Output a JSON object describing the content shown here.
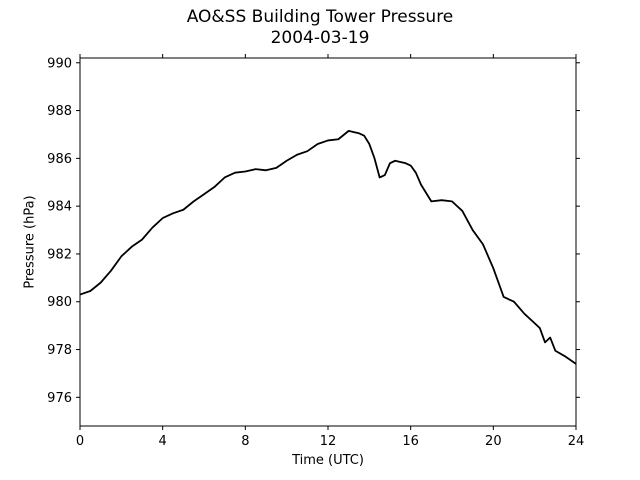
{
  "chart_data": {
    "type": "line",
    "title": "AO&SS Building Tower Pressure",
    "subtitle": "2004-03-19",
    "xlabel": "Time (UTC)",
    "ylabel": "Pressure (hPa)",
    "xlim": [
      0,
      24
    ],
    "ylim": [
      974.8,
      990.2
    ],
    "xticks": [
      0,
      4,
      8,
      12,
      16,
      20,
      24
    ],
    "yticks": [
      976,
      978,
      980,
      982,
      984,
      986,
      988,
      990
    ],
    "grid": false,
    "series": [
      {
        "color": "#000000",
        "x": [
          0,
          0.5,
          1.0,
          1.5,
          2.0,
          2.5,
          3.0,
          3.5,
          4.0,
          4.5,
          5.0,
          5.5,
          6.0,
          6.5,
          7.0,
          7.5,
          8.0,
          8.5,
          9.0,
          9.5,
          10.0,
          10.5,
          11.0,
          11.5,
          12.0,
          12.5,
          13.0,
          13.25,
          13.5,
          13.75,
          14.0,
          14.25,
          14.5,
          14.75,
          15.0,
          15.25,
          15.5,
          15.75,
          16.0,
          16.25,
          16.5,
          17.0,
          17.5,
          18.0,
          18.5,
          19.0,
          19.5,
          20.0,
          20.5,
          21.0,
          21.5,
          22.0,
          22.25,
          22.5,
          22.75,
          23.0,
          23.5,
          24.0
        ],
        "y": [
          980.3,
          980.45,
          980.8,
          981.3,
          981.9,
          982.3,
          982.6,
          983.1,
          983.5,
          983.7,
          983.85,
          984.2,
          984.5,
          984.8,
          985.2,
          985.4,
          985.45,
          985.55,
          985.5,
          985.6,
          985.9,
          986.15,
          986.3,
          986.6,
          986.75,
          986.8,
          987.15,
          987.1,
          987.05,
          986.95,
          986.6,
          986.0,
          985.2,
          985.3,
          985.8,
          985.9,
          985.85,
          985.8,
          985.7,
          985.4,
          984.9,
          984.2,
          984.25,
          984.2,
          983.8,
          983.0,
          982.4,
          981.4,
          980.2,
          980.0,
          979.5,
          979.1,
          978.9,
          978.3,
          978.5,
          977.95,
          977.7,
          977.4
        ]
      }
    ]
  }
}
